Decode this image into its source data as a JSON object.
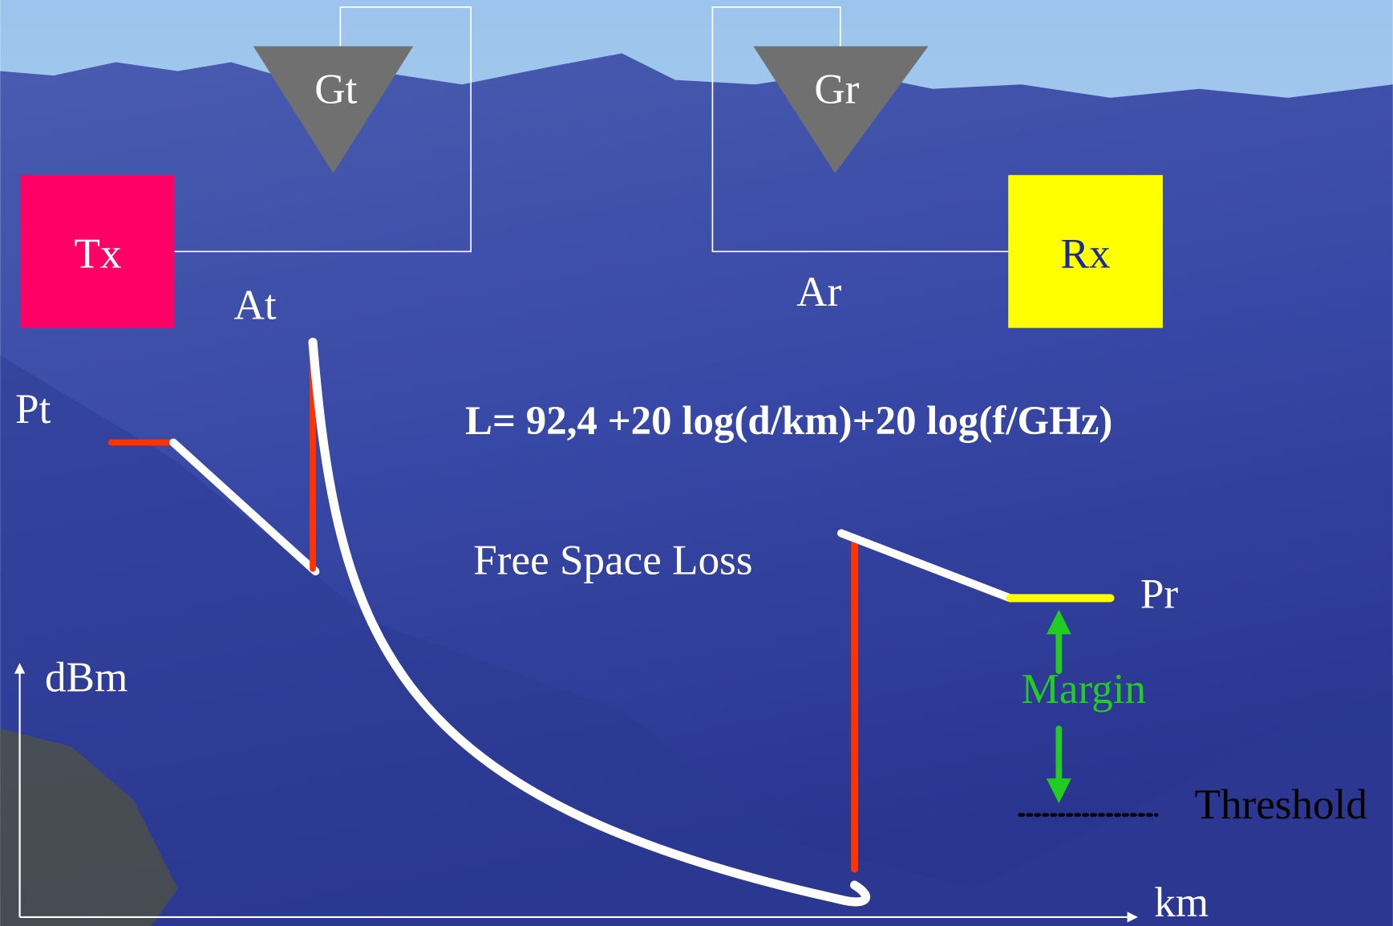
{
  "transmitter": {
    "label": "Tx",
    "gain": "Gt",
    "attenuation": "At",
    "power": "Pt"
  },
  "receiver": {
    "label": "Rx",
    "gain": "Gr",
    "attenuation": "Ar",
    "power": "Pr"
  },
  "formula": "L= 92,4 +20 log(d/km)+20 log(f/GHz)",
  "loss_label": "Free Space Loss",
  "margin_label": "Margin",
  "threshold_label": "Threshold",
  "y_axis_label": "dBm",
  "x_axis_label": "km"
}
